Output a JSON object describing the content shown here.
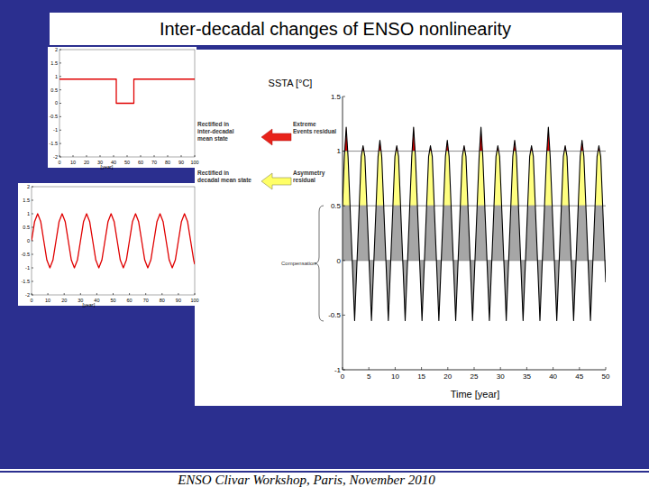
{
  "slide": {
    "title": "Inter-decadal changes of ENSO nonlinearity",
    "footer": "ENSO Clivar Workshop, Paris, November 2010"
  },
  "chart_data": [
    {
      "type": "line",
      "x_label": "[year]",
      "x": [
        0,
        42,
        42,
        55,
        55,
        100
      ],
      "series": [
        {
          "color": "#e00000",
          "values": [
            0.9,
            0.9,
            0,
            0,
            0.9,
            0.9
          ]
        }
      ],
      "xlim": [
        0,
        100
      ],
      "xticks": [
        0,
        10,
        20,
        30,
        40,
        50,
        60,
        70,
        80,
        90,
        100
      ],
      "ylim": [
        -2,
        2
      ],
      "yticks": [
        -2,
        -1.5,
        -1,
        -0.5,
        0,
        0.5,
        1,
        1.5,
        2
      ],
      "grid": false
    },
    {
      "type": "line",
      "x_label": "[year]",
      "x": [
        0,
        1.875,
        3.75,
        5.625,
        7.5,
        9.375,
        11.25,
        13.125,
        15,
        16.875,
        18.75,
        20.625,
        22.5,
        24.375,
        26.25,
        28.125,
        30,
        31.875,
        33.75,
        35.625,
        37.5,
        39.375,
        41.25,
        43.125,
        45,
        46.875,
        48.75,
        50.625,
        52.5,
        54.375,
        56.25,
        58.125,
        60,
        61.875,
        63.75,
        65.625,
        67.5,
        69.375,
        71.25,
        73.125,
        75,
        76.875,
        78.75,
        80.625,
        82.5,
        84.375,
        86.25,
        88.125,
        90,
        91.875,
        93.75,
        95.625,
        97.5,
        99.375,
        100
      ],
      "series": [
        {
          "color": "#e00000",
          "values": [
            0,
            0.71,
            1,
            0.71,
            0,
            -0.71,
            -1,
            -0.71,
            0,
            0.71,
            1,
            0.71,
            0,
            -0.71,
            -1,
            -0.71,
            0,
            0.71,
            1,
            0.71,
            0,
            -0.71,
            -1,
            -0.71,
            0,
            0.71,
            1,
            0.71,
            0,
            -0.71,
            -1,
            -0.71,
            0,
            0.71,
            1,
            0.71,
            0,
            -0.71,
            -1,
            -0.71,
            0,
            0.71,
            1,
            0.71,
            0,
            -0.71,
            -1,
            -0.71,
            0,
            0.71,
            1,
            0.71,
            0,
            -0.71,
            -0.87
          ]
        }
      ],
      "xlim": [
        0,
        100
      ],
      "xticks": [
        0,
        10,
        20,
        30,
        40,
        50,
        60,
        70,
        80,
        90,
        100
      ],
      "ylim": [
        -2,
        2
      ],
      "yticks": [
        -2,
        -1.5,
        -1,
        -0.5,
        0,
        0.5,
        1,
        1.5,
        2
      ],
      "grid": false
    },
    {
      "type": "area",
      "y_label": "SSTA [°C]",
      "x_label": "Time [year]",
      "x": [
        0,
        0.35,
        0.7,
        1.05,
        2.3,
        3.55,
        3.9,
        4.25,
        5.5,
        6.75,
        7.1,
        7.45,
        8.7,
        9.95,
        10.3,
        10.65,
        11.9,
        13.15,
        13.5,
        13.85,
        15.1,
        16.35,
        16.7,
        17.05,
        18.3,
        19.55,
        19.9,
        20.25,
        21.5,
        22.75,
        23.1,
        23.45,
        24.7,
        25.95,
        26.3,
        26.65,
        27.9,
        29.15,
        29.5,
        29.85,
        31.1,
        32.35,
        32.7,
        33.05,
        34.3,
        35.55,
        35.9,
        36.25,
        37.5,
        38.75,
        39.1,
        39.45,
        40.7,
        41.95,
        42.3,
        42.65,
        43.9,
        45.15,
        45.5,
        45.85,
        47.1,
        48.35,
        48.7,
        49.05,
        50
      ],
      "series": [
        {
          "color": "#000000",
          "values": [
            0.5,
            0.95,
            1.22,
            0.95,
            -0.55,
            0.95,
            1.05,
            0.95,
            -0.55,
            0.95,
            1.1,
            0.95,
            -0.55,
            0.95,
            1.05,
            0.95,
            -0.55,
            0.95,
            1.22,
            0.95,
            -0.55,
            0.95,
            1.05,
            0.95,
            -0.55,
            0.95,
            1.1,
            0.95,
            -0.55,
            0.95,
            1.05,
            0.95,
            -0.55,
            0.95,
            1.22,
            0.95,
            -0.55,
            0.95,
            1.05,
            0.95,
            -0.55,
            0.95,
            1.1,
            0.95,
            -0.55,
            0.95,
            1.05,
            0.95,
            -0.55,
            0.95,
            1.22,
            0.95,
            -0.55,
            0.95,
            1.05,
            0.95,
            -0.55,
            0.95,
            1.1,
            0.95,
            -0.55,
            0.95,
            1.05,
            0.95,
            -0.2
          ]
        }
      ],
      "bands": [
        {
          "from": -1,
          "to": 0.5,
          "color": "#a6a6a6"
        },
        {
          "from": 0.5,
          "to": 1,
          "color": "#ffff80"
        },
        {
          "from": 1,
          "to": 1.5,
          "color": "#d40000"
        }
      ],
      "ref_lines": [
        0,
        0.5,
        1
      ],
      "annotations": [
        {
          "text": [
            "Rectified in",
            "inter-decadal",
            "mean state"
          ]
        },
        {
          "text": [
            "Extreme",
            "Events residual"
          ]
        },
        {
          "text": [
            "Rectified in",
            "decadal mean state"
          ]
        },
        {
          "text": [
            "Asymmetry",
            "residual"
          ]
        },
        {
          "text": [
            "Compensation"
          ]
        }
      ],
      "xlim": [
        0,
        50
      ],
      "xticks": [
        0,
        5,
        10,
        15,
        20,
        25,
        30,
        35,
        40,
        45,
        50
      ],
      "ylim": [
        -1,
        1.5
      ],
      "yticks": [
        -1,
        -0.5,
        0,
        0.5,
        1,
        1.5
      ],
      "grid": false
    }
  ]
}
